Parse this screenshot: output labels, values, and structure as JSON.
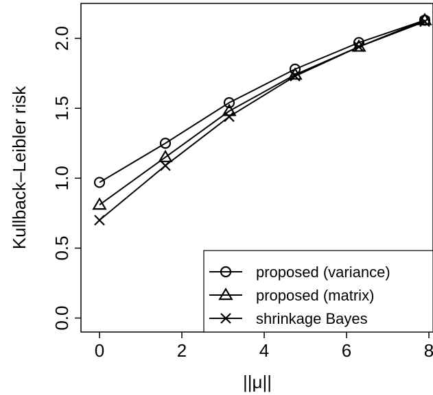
{
  "chart_data": {
    "type": "line",
    "xlabel": "||μ||",
    "ylabel": "Kullback–Leibler risk",
    "xlim": [
      -0.45,
      8.1
    ],
    "ylim": [
      -0.1,
      2.25
    ],
    "xticks": [
      0,
      2,
      4,
      6,
      8
    ],
    "xtick_labels": [
      "0",
      "2",
      "4",
      "6",
      "8"
    ],
    "yticks": [
      0.0,
      0.5,
      1.0,
      1.5,
      2.0
    ],
    "ytick_labels": [
      "0.0",
      "0.5",
      "1.0",
      "1.5",
      "2.0"
    ],
    "grid": false,
    "legend_position": "bottom-right",
    "x": [
      0,
      1.6,
      3.15,
      4.75,
      6.3,
      7.9
    ],
    "series": [
      {
        "name": "proposed (variance)",
        "marker": "circle",
        "values": [
          0.97,
          1.25,
          1.54,
          1.78,
          1.97,
          2.13
        ]
      },
      {
        "name": "proposed (matrix)",
        "marker": "triangle",
        "values": [
          0.81,
          1.15,
          1.48,
          1.74,
          1.94,
          2.13
        ]
      },
      {
        "name": "shrinkage Bayes",
        "marker": "cross",
        "values": [
          0.7,
          1.09,
          1.44,
          1.73,
          1.94,
          2.12
        ]
      }
    ]
  }
}
